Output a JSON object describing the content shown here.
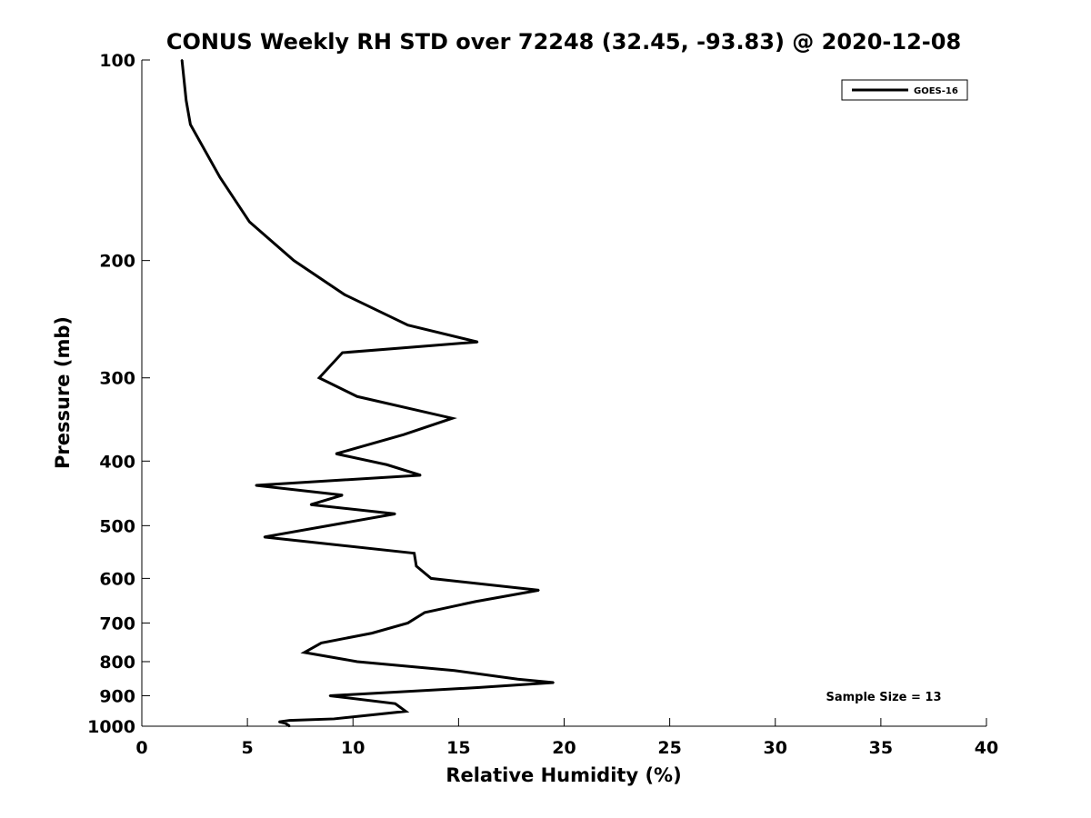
{
  "chart_data": {
    "type": "line",
    "title": "CONUS Weekly RH STD over 72248 (32.45, -93.83) @ 2020-12-08",
    "xlabel": "Relative Humidity (%)",
    "ylabel": "Pressure (mb)",
    "xlim": [
      0,
      40
    ],
    "ylim": [
      100,
      1000
    ],
    "yscale": "log",
    "y_reversed": true,
    "grid": false,
    "legend_placement": "top-right",
    "x_ticks": [
      "0",
      "5",
      "10",
      "15",
      "20",
      "25",
      "30",
      "35",
      "40"
    ],
    "y_ticks": [
      "100",
      "200",
      "300",
      "400",
      "500",
      "600",
      "700",
      "800",
      "900",
      "1000"
    ],
    "annotation": "Sample Size = 13",
    "series": [
      {
        "name": "GOES-16",
        "color": "#000000",
        "x": [
          1.9,
          2.1,
          2.3,
          3.7,
          5.1,
          7.2,
          9.6,
          12.6,
          15.9,
          9.5,
          8.4,
          10.2,
          14.7,
          12.4,
          9.2,
          11.6,
          13.2,
          5.4,
          9.5,
          8.0,
          12.0,
          5.8,
          12.9,
          13.0,
          13.7,
          18.8,
          15.8,
          13.4,
          12.6,
          10.9,
          8.5,
          7.7,
          10.2,
          14.8,
          17.8,
          19.5,
          15.9,
          8.9,
          12.0,
          12.5,
          9.1,
          7.0,
          6.5,
          6.8,
          7.0
        ],
        "y": [
          100,
          115,
          125,
          150,
          175,
          200,
          225,
          250,
          265,
          275,
          300,
          320,
          345,
          365,
          390,
          405,
          420,
          435,
          450,
          465,
          480,
          520,
          550,
          575,
          600,
          625,
          650,
          675,
          700,
          725,
          750,
          775,
          800,
          825,
          850,
          860,
          875,
          900,
          925,
          950,
          975,
          980,
          985,
          990,
          1000
        ]
      }
    ]
  }
}
